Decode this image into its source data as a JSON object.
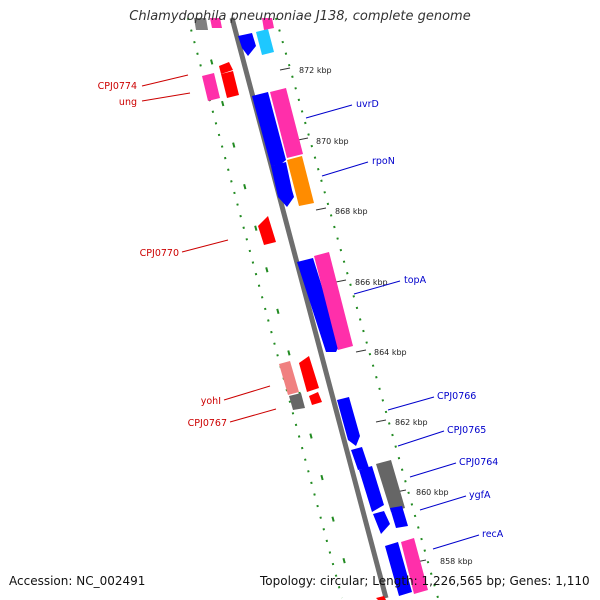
{
  "title": "Chlamydophila pneumoniae J138, complete genome",
  "footer": {
    "accession": "Accession: NC_002491",
    "topology": "Topology: circular; Length: 1,226,565 bp; Genes: 1,110"
  },
  "ticks": [
    "872 kbp",
    "870 kbp",
    "868 kbp",
    "866 kbp",
    "864 kbp",
    "862 kbp",
    "860 kbp",
    "858 kbp"
  ],
  "labels": {
    "forward": [
      "uvrD",
      "rpoN",
      "topA",
      "CPJ0766",
      "CPJ0765",
      "CPJ0764",
      "ygfA",
      "recA"
    ],
    "reverse": [
      "CPJ0774",
      "ung",
      "CPJ0770",
      "yohI",
      "CPJ0767"
    ]
  },
  "colors": {
    "forward_cds": "#0000ff",
    "forward_gene": "#ff2faa",
    "reverse_cds": "#ff0000",
    "reverse_gene": "#ff2faa",
    "forward_label": "#0000cc",
    "reverse_label": "#cc0000",
    "backbone": "#808080",
    "ring_dots": "#228b22"
  }
}
